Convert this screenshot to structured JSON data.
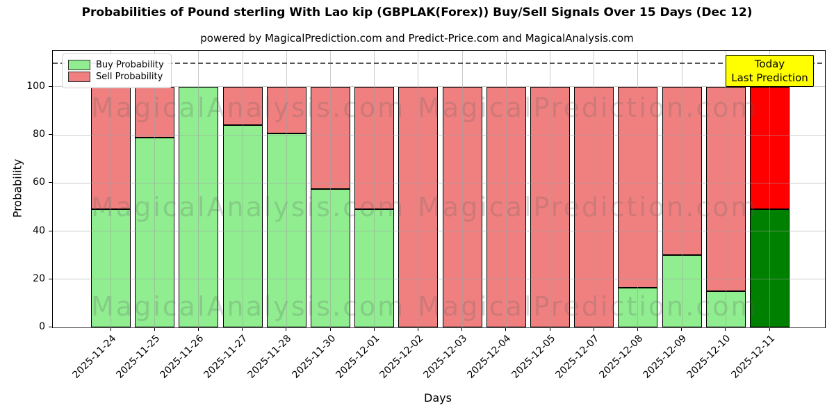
{
  "chart_data": {
    "type": "bar",
    "stacked": true,
    "title": "Probabilities of Pound sterling With Lao kip (GBPLAK(Forex)) Buy/Sell Signals Over 15 Days (Dec 12)",
    "subtitle": "powered by MagicalPrediction.com and Predict-Price.com and MagicalAnalysis.com",
    "xlabel": "Days",
    "ylabel": "Probability",
    "ylim": [
      0,
      115
    ],
    "yticks": [
      0,
      20,
      40,
      60,
      80,
      100
    ],
    "grid": true,
    "dashed_line_y": 110,
    "legend_position": "upper left",
    "legend": [
      {
        "label": "Buy Probability",
        "color": "#90EE90"
      },
      {
        "label": "Sell Probability",
        "color": "#F08080"
      }
    ],
    "categories": [
      "2025-11-24",
      "2025-11-25",
      "2025-11-26",
      "2025-11-27",
      "2025-11-28",
      "2025-11-30",
      "2025-12-01",
      "2025-12-02",
      "2025-12-03",
      "2025-12-04",
      "2025-12-05",
      "2025-12-07",
      "2025-12-08",
      "2025-12-09",
      "2025-12-10",
      "2025-12-11"
    ],
    "series": [
      {
        "name": "Buy Probability",
        "values": [
          49,
          79,
          100,
          84,
          80.5,
          57.5,
          49,
          0,
          0,
          0,
          0,
          0,
          16.5,
          30,
          15,
          49
        ]
      },
      {
        "name": "Sell Probability",
        "values": [
          51,
          21,
          0,
          16,
          19.5,
          42.5,
          51,
          100,
          100,
          100,
          100,
          100,
          83.5,
          70,
          85,
          51
        ]
      }
    ],
    "today_index": 15,
    "colors": {
      "buy": "#90EE90",
      "sell": "#F08080",
      "today_buy": "#008000",
      "today_sell": "#FF0000",
      "bar_edge": "#000000"
    },
    "annotation_box": {
      "lines": [
        "Today",
        "Last Prediction"
      ],
      "bg": "#FFFF00",
      "border": "#000000"
    },
    "watermarks": {
      "left": "MagicalAnalysis.com",
      "right": "MagicalPrediction.com"
    }
  }
}
